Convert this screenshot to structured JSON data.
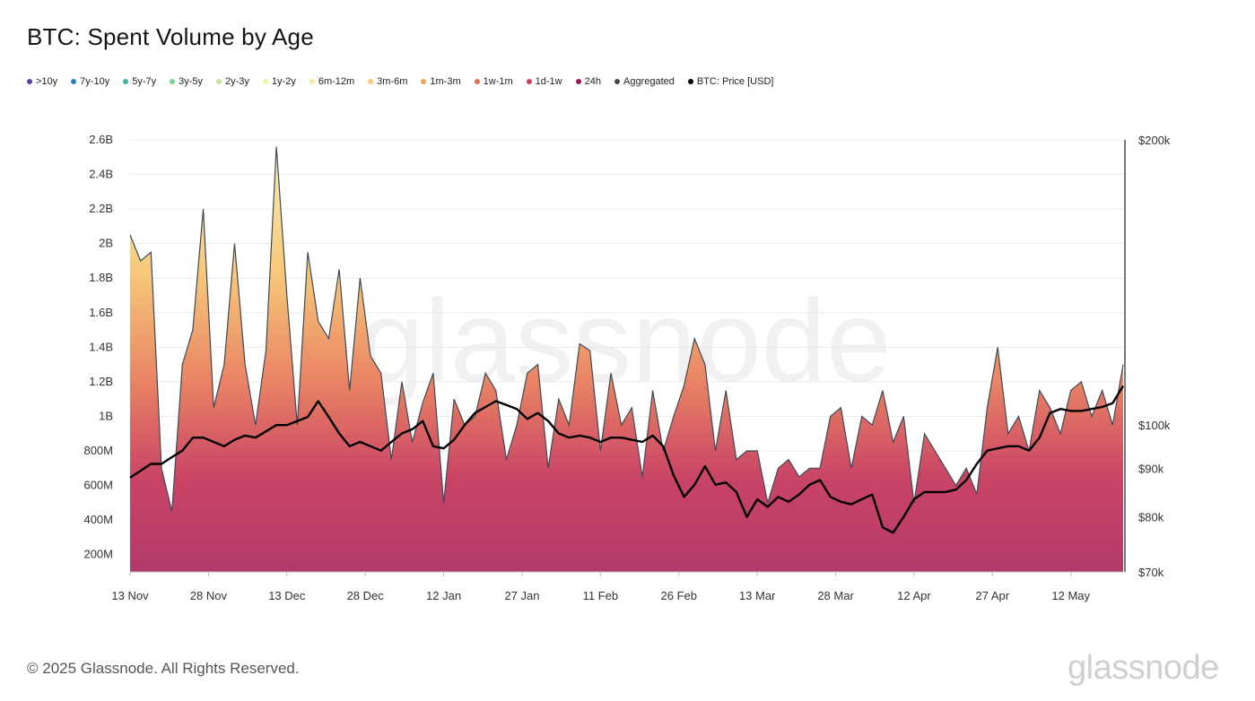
{
  "footer": {
    "copyright": "© 2025 Glassnode. All Rights Reserved.",
    "logo_text": "glassnode"
  },
  "watermark": "glassnode",
  "chart_data": {
    "type": "area",
    "title": "BTC: Spent Volume by Age",
    "legend": {
      "placement": "top-left",
      "entries": [
        {
          "label": ">10y",
          "color": "#5b3fa0"
        },
        {
          "label": "7y-10y",
          "color": "#2c7fb8"
        },
        {
          "label": "5y-7y",
          "color": "#3fb5a8"
        },
        {
          "label": "3y-5y",
          "color": "#7fd197"
        },
        {
          "label": "2y-3y",
          "color": "#c3e59c"
        },
        {
          "label": "1y-2y",
          "color": "#eff3a8"
        },
        {
          "label": "6m-12m",
          "color": "#fbe7a4"
        },
        {
          "label": "3m-6m",
          "color": "#f7c978"
        },
        {
          "label": "1m-3m",
          "color": "#f1a15e"
        },
        {
          "label": "1w-1m",
          "color": "#e56f55"
        },
        {
          "label": "1d-1w",
          "color": "#d33f5a"
        },
        {
          "label": "24h",
          "color": "#a0155a"
        },
        {
          "label": "Aggregated",
          "color": "#3d4a55"
        },
        {
          "label": "BTC: Price [USD]",
          "color": "#000000"
        }
      ]
    },
    "x_tick_labels": [
      "13 Nov",
      "28 Nov",
      "13 Dec",
      "28 Dec",
      "12 Jan",
      "27 Jan",
      "11 Feb",
      "26 Feb",
      "13 Mar",
      "28 Mar",
      "12 Apr",
      "27 Apr",
      "12 May"
    ],
    "y_left": {
      "ticks": [
        200000000,
        400000000,
        600000000,
        800000000,
        1000000000,
        1200000000,
        1400000000,
        1600000000,
        1800000000,
        2000000000,
        2200000000,
        2400000000,
        2600000000
      ],
      "tick_labels": [
        "200M",
        "400M",
        "600M",
        "800M",
        "1B",
        "1.2B",
        "1.4B",
        "1.6B",
        "1.8B",
        "2B",
        "2.2B",
        "2.4B",
        "2.6B"
      ],
      "range": [
        100000000,
        2600000000
      ]
    },
    "y_right": {
      "scale": "log",
      "ticks": [
        70000,
        80000,
        90000,
        100000,
        200000
      ],
      "tick_labels": [
        "$70k",
        "$80k",
        "$90k",
        "$100k",
        "$200k"
      ],
      "range": [
        70000,
        200000
      ]
    },
    "grid": true,
    "x": [
      "2024-11-13",
      "2024-11-15",
      "2024-11-17",
      "2024-11-19",
      "2024-11-21",
      "2024-11-23",
      "2024-11-25",
      "2024-11-27",
      "2024-11-29",
      "2024-12-01",
      "2024-12-03",
      "2024-12-05",
      "2024-12-07",
      "2024-12-09",
      "2024-12-11",
      "2024-12-13",
      "2024-12-15",
      "2024-12-17",
      "2024-12-19",
      "2024-12-21",
      "2024-12-23",
      "2024-12-25",
      "2024-12-27",
      "2024-12-29",
      "2024-12-31",
      "2025-01-02",
      "2025-01-04",
      "2025-01-06",
      "2025-01-08",
      "2025-01-10",
      "2025-01-12",
      "2025-01-14",
      "2025-01-16",
      "2025-01-18",
      "2025-01-20",
      "2025-01-22",
      "2025-01-24",
      "2025-01-26",
      "2025-01-28",
      "2025-01-30",
      "2025-02-01",
      "2025-02-03",
      "2025-02-05",
      "2025-02-07",
      "2025-02-09",
      "2025-02-11",
      "2025-02-13",
      "2025-02-15",
      "2025-02-17",
      "2025-02-19",
      "2025-02-21",
      "2025-02-23",
      "2025-02-25",
      "2025-02-27",
      "2025-03-01",
      "2025-03-03",
      "2025-03-05",
      "2025-03-07",
      "2025-03-09",
      "2025-03-11",
      "2025-03-13",
      "2025-03-15",
      "2025-03-17",
      "2025-03-19",
      "2025-03-21",
      "2025-03-23",
      "2025-03-25",
      "2025-03-27",
      "2025-03-29",
      "2025-03-31",
      "2025-04-02",
      "2025-04-04",
      "2025-04-06",
      "2025-04-08",
      "2025-04-10",
      "2025-04-12",
      "2025-04-14",
      "2025-04-16",
      "2025-04-18",
      "2025-04-20",
      "2025-04-22",
      "2025-04-24",
      "2025-04-26",
      "2025-04-28",
      "2025-04-30",
      "2025-05-02",
      "2025-05-04",
      "2025-05-06",
      "2025-05-08",
      "2025-05-10",
      "2025-05-12",
      "2025-05-14",
      "2025-05-16",
      "2025-05-18",
      "2025-05-20",
      "2025-05-22"
    ],
    "series": [
      {
        "name": "Aggregated",
        "values": [
          2050000000,
          1900000000,
          1950000000,
          700000000,
          450000000,
          1300000000,
          1500000000,
          2200000000,
          1050000000,
          1300000000,
          2000000000,
          1300000000,
          950000000,
          1380000000,
          2560000000,
          1700000000,
          950000000,
          1950000000,
          1550000000,
          1450000000,
          1850000000,
          1150000000,
          1800000000,
          1350000000,
          1250000000,
          750000000,
          1200000000,
          850000000,
          1080000000,
          1250000000,
          500000000,
          1100000000,
          950000000,
          1000000000,
          1250000000,
          1150000000,
          750000000,
          950000000,
          1250000000,
          1300000000,
          700000000,
          1100000000,
          950000000,
          1420000000,
          1380000000,
          800000000,
          1250000000,
          950000000,
          1050000000,
          650000000,
          1150000000,
          800000000,
          1000000000,
          1180000000,
          1450000000,
          1300000000,
          800000000,
          1150000000,
          750000000,
          800000000,
          800000000,
          500000000,
          700000000,
          750000000,
          650000000,
          700000000,
          700000000,
          1000000000,
          1050000000,
          700000000,
          1000000000,
          950000000,
          1150000000,
          850000000,
          1000000000,
          500000000,
          900000000,
          800000000,
          700000000,
          600000000,
          700000000,
          550000000,
          1050000000,
          1400000000,
          900000000,
          1000000000,
          800000000,
          1150000000,
          1050000000,
          900000000,
          1150000000,
          1200000000,
          1000000000,
          1150000000,
          950000000,
          1300000000
        ]
      },
      {
        "name": "BTC: Price [USD]",
        "values": [
          88000,
          89500,
          91000,
          91000,
          92500,
          94000,
          97000,
          97000,
          96000,
          95000,
          96500,
          97500,
          97000,
          98500,
          100000,
          100000,
          101000,
          102000,
          106000,
          102000,
          98000,
          95000,
          96000,
          95000,
          94000,
          96000,
          98000,
          99000,
          101000,
          95000,
          94500,
          96500,
          100000,
          103000,
          104500,
          106000,
          105000,
          104000,
          101500,
          103000,
          101000,
          98000,
          97000,
          97500,
          97000,
          96000,
          97000,
          97000,
          96500,
          96000,
          97500,
          95000,
          88500,
          84000,
          86500,
          90500,
          86500,
          87000,
          85000,
          80000,
          83500,
          82000,
          84000,
          83000,
          84500,
          86500,
          87500,
          84000,
          83000,
          82500,
          83500,
          84500,
          78000,
          77000,
          80000,
          83500,
          85000,
          85000,
          85000,
          85500,
          87500,
          91000,
          94000,
          94500,
          95000,
          95000,
          94000,
          97000,
          103000,
          104000,
          103500,
          103500,
          104000,
          104500,
          105500,
          110000
        ]
      }
    ]
  }
}
